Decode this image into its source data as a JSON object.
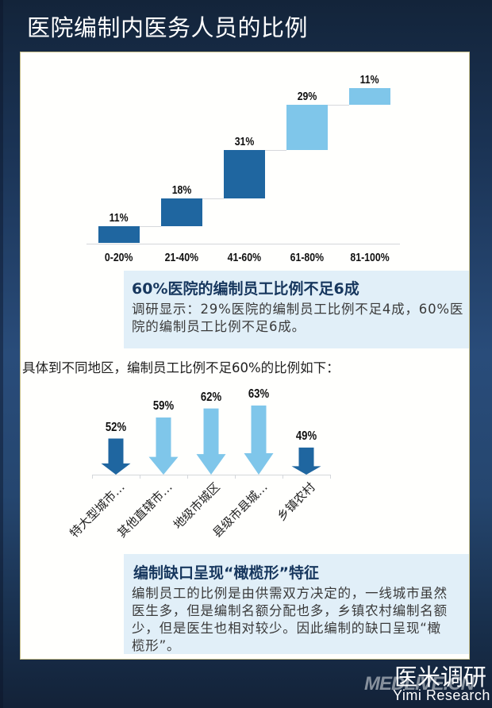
{
  "page": {
    "title": "医院编制内医务人员的比例"
  },
  "colors": {
    "dark_blue": "#1f66a0",
    "light_blue": "#7fc6ea",
    "info_bg": "#e1eff8",
    "info_title": "#17375e"
  },
  "info_box_1": {
    "title": "60%医院的编制员工比例不足6成",
    "body": "调研显示：29%医院的编制员工比例不足4成，60%医院的编制员工比例不足6成。"
  },
  "intro_text": "具体到不同地区，编制员工比例不足60%的比例如下：",
  "info_box_2": {
    "title": "编制缺口呈现“橄榄形”特征",
    "body": "编制员工的比例是由供需双方决定的，一线城市虽然医生多，但是编制名额分配也多，乡镇农村编制名额少，但是医生也相对较少。因此编制的缺口呈现“橄榄形”。"
  },
  "logo": {
    "cn": "医米调研",
    "watermark": "MEDLIVE.CN",
    "en": "Yimi Research"
  },
  "chart_data": [
    {
      "type": "bar",
      "subtype": "waterfall",
      "title": "",
      "categories": [
        "0-20%",
        "21-40%",
        "41-60%",
        "61-80%",
        "81-100%"
      ],
      "values": [
        11,
        18,
        31,
        29,
        11
      ],
      "value_labels": [
        "11%",
        "18%",
        "31%",
        "29%",
        "11%"
      ],
      "bar_colors": [
        "#1f66a0",
        "#1f66a0",
        "#1f66a0",
        "#7fc6ea",
        "#7fc6ea"
      ],
      "xlabel": "",
      "ylabel": "",
      "ylim": [
        0,
        100
      ],
      "grid": false,
      "legend": "none"
    },
    {
      "type": "bar",
      "subtype": "arrow",
      "title": "",
      "categories": [
        "特大型城市…",
        "其他直辖市…",
        "地级市城区",
        "县级市县城…",
        "乡镇农村"
      ],
      "values": [
        52,
        59,
        62,
        63,
        49
      ],
      "value_labels": [
        "52%",
        "59%",
        "62%",
        "63%",
        "49%"
      ],
      "bar_colors": [
        "#1f66a0",
        "#7fc6ea",
        "#7fc6ea",
        "#7fc6ea",
        "#1f66a0"
      ],
      "xlabel": "",
      "ylabel": "",
      "ylim": [
        40,
        70
      ],
      "grid": false,
      "legend": "none"
    }
  ]
}
